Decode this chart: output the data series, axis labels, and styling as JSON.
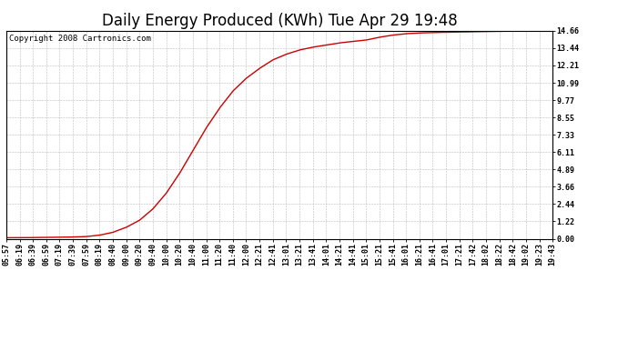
{
  "title": "Daily Energy Produced (KWh) Tue Apr 29 19:48",
  "copyright_text": "Copyright 2008 Cartronics.com",
  "line_color": "#cc0000",
  "bg_color": "#ffffff",
  "plot_bg_color": "#ffffff",
  "grid_color": "#aaaaaa",
  "yticks": [
    0.0,
    1.22,
    2.44,
    3.66,
    4.89,
    6.11,
    7.33,
    8.55,
    9.77,
    10.99,
    12.21,
    13.44,
    14.66
  ],
  "ymax": 14.66,
  "ymin": 0.0,
  "xtick_labels": [
    "05:57",
    "06:19",
    "06:39",
    "06:59",
    "07:19",
    "07:39",
    "07:59",
    "08:19",
    "08:40",
    "09:00",
    "09:20",
    "09:40",
    "10:00",
    "10:20",
    "10:40",
    "11:00",
    "11:20",
    "11:40",
    "12:00",
    "12:21",
    "12:41",
    "13:01",
    "13:21",
    "13:41",
    "14:01",
    "14:21",
    "14:41",
    "15:01",
    "15:21",
    "15:41",
    "16:01",
    "16:21",
    "16:41",
    "17:01",
    "17:21",
    "17:42",
    "18:02",
    "18:22",
    "18:42",
    "19:02",
    "19:23",
    "19:43"
  ],
  "title_fontsize": 12,
  "tick_fontsize": 6,
  "copyright_fontsize": 6.5,
  "curve_points": [
    [
      0,
      0.07
    ],
    [
      1,
      0.07
    ],
    [
      2,
      0.08
    ],
    [
      3,
      0.09
    ],
    [
      4,
      0.1
    ],
    [
      5,
      0.12
    ],
    [
      6,
      0.15
    ],
    [
      7,
      0.25
    ],
    [
      8,
      0.45
    ],
    [
      9,
      0.8
    ],
    [
      10,
      1.3
    ],
    [
      11,
      2.1
    ],
    [
      12,
      3.2
    ],
    [
      13,
      4.6
    ],
    [
      14,
      6.2
    ],
    [
      15,
      7.8
    ],
    [
      16,
      9.2
    ],
    [
      17,
      10.4
    ],
    [
      18,
      11.3
    ],
    [
      19,
      12.0
    ],
    [
      20,
      12.6
    ],
    [
      21,
      13.0
    ],
    [
      22,
      13.3
    ],
    [
      23,
      13.5
    ],
    [
      24,
      13.65
    ],
    [
      25,
      13.8
    ],
    [
      26,
      13.9
    ],
    [
      27,
      14.0
    ],
    [
      28,
      14.2
    ],
    [
      29,
      14.35
    ],
    [
      30,
      14.45
    ],
    [
      31,
      14.5
    ],
    [
      32,
      14.53
    ],
    [
      33,
      14.55
    ],
    [
      34,
      14.57
    ],
    [
      35,
      14.59
    ],
    [
      36,
      14.6
    ],
    [
      37,
      14.62
    ],
    [
      38,
      14.63
    ],
    [
      39,
      14.64
    ],
    [
      40,
      14.65
    ],
    [
      41,
      14.66
    ]
  ]
}
